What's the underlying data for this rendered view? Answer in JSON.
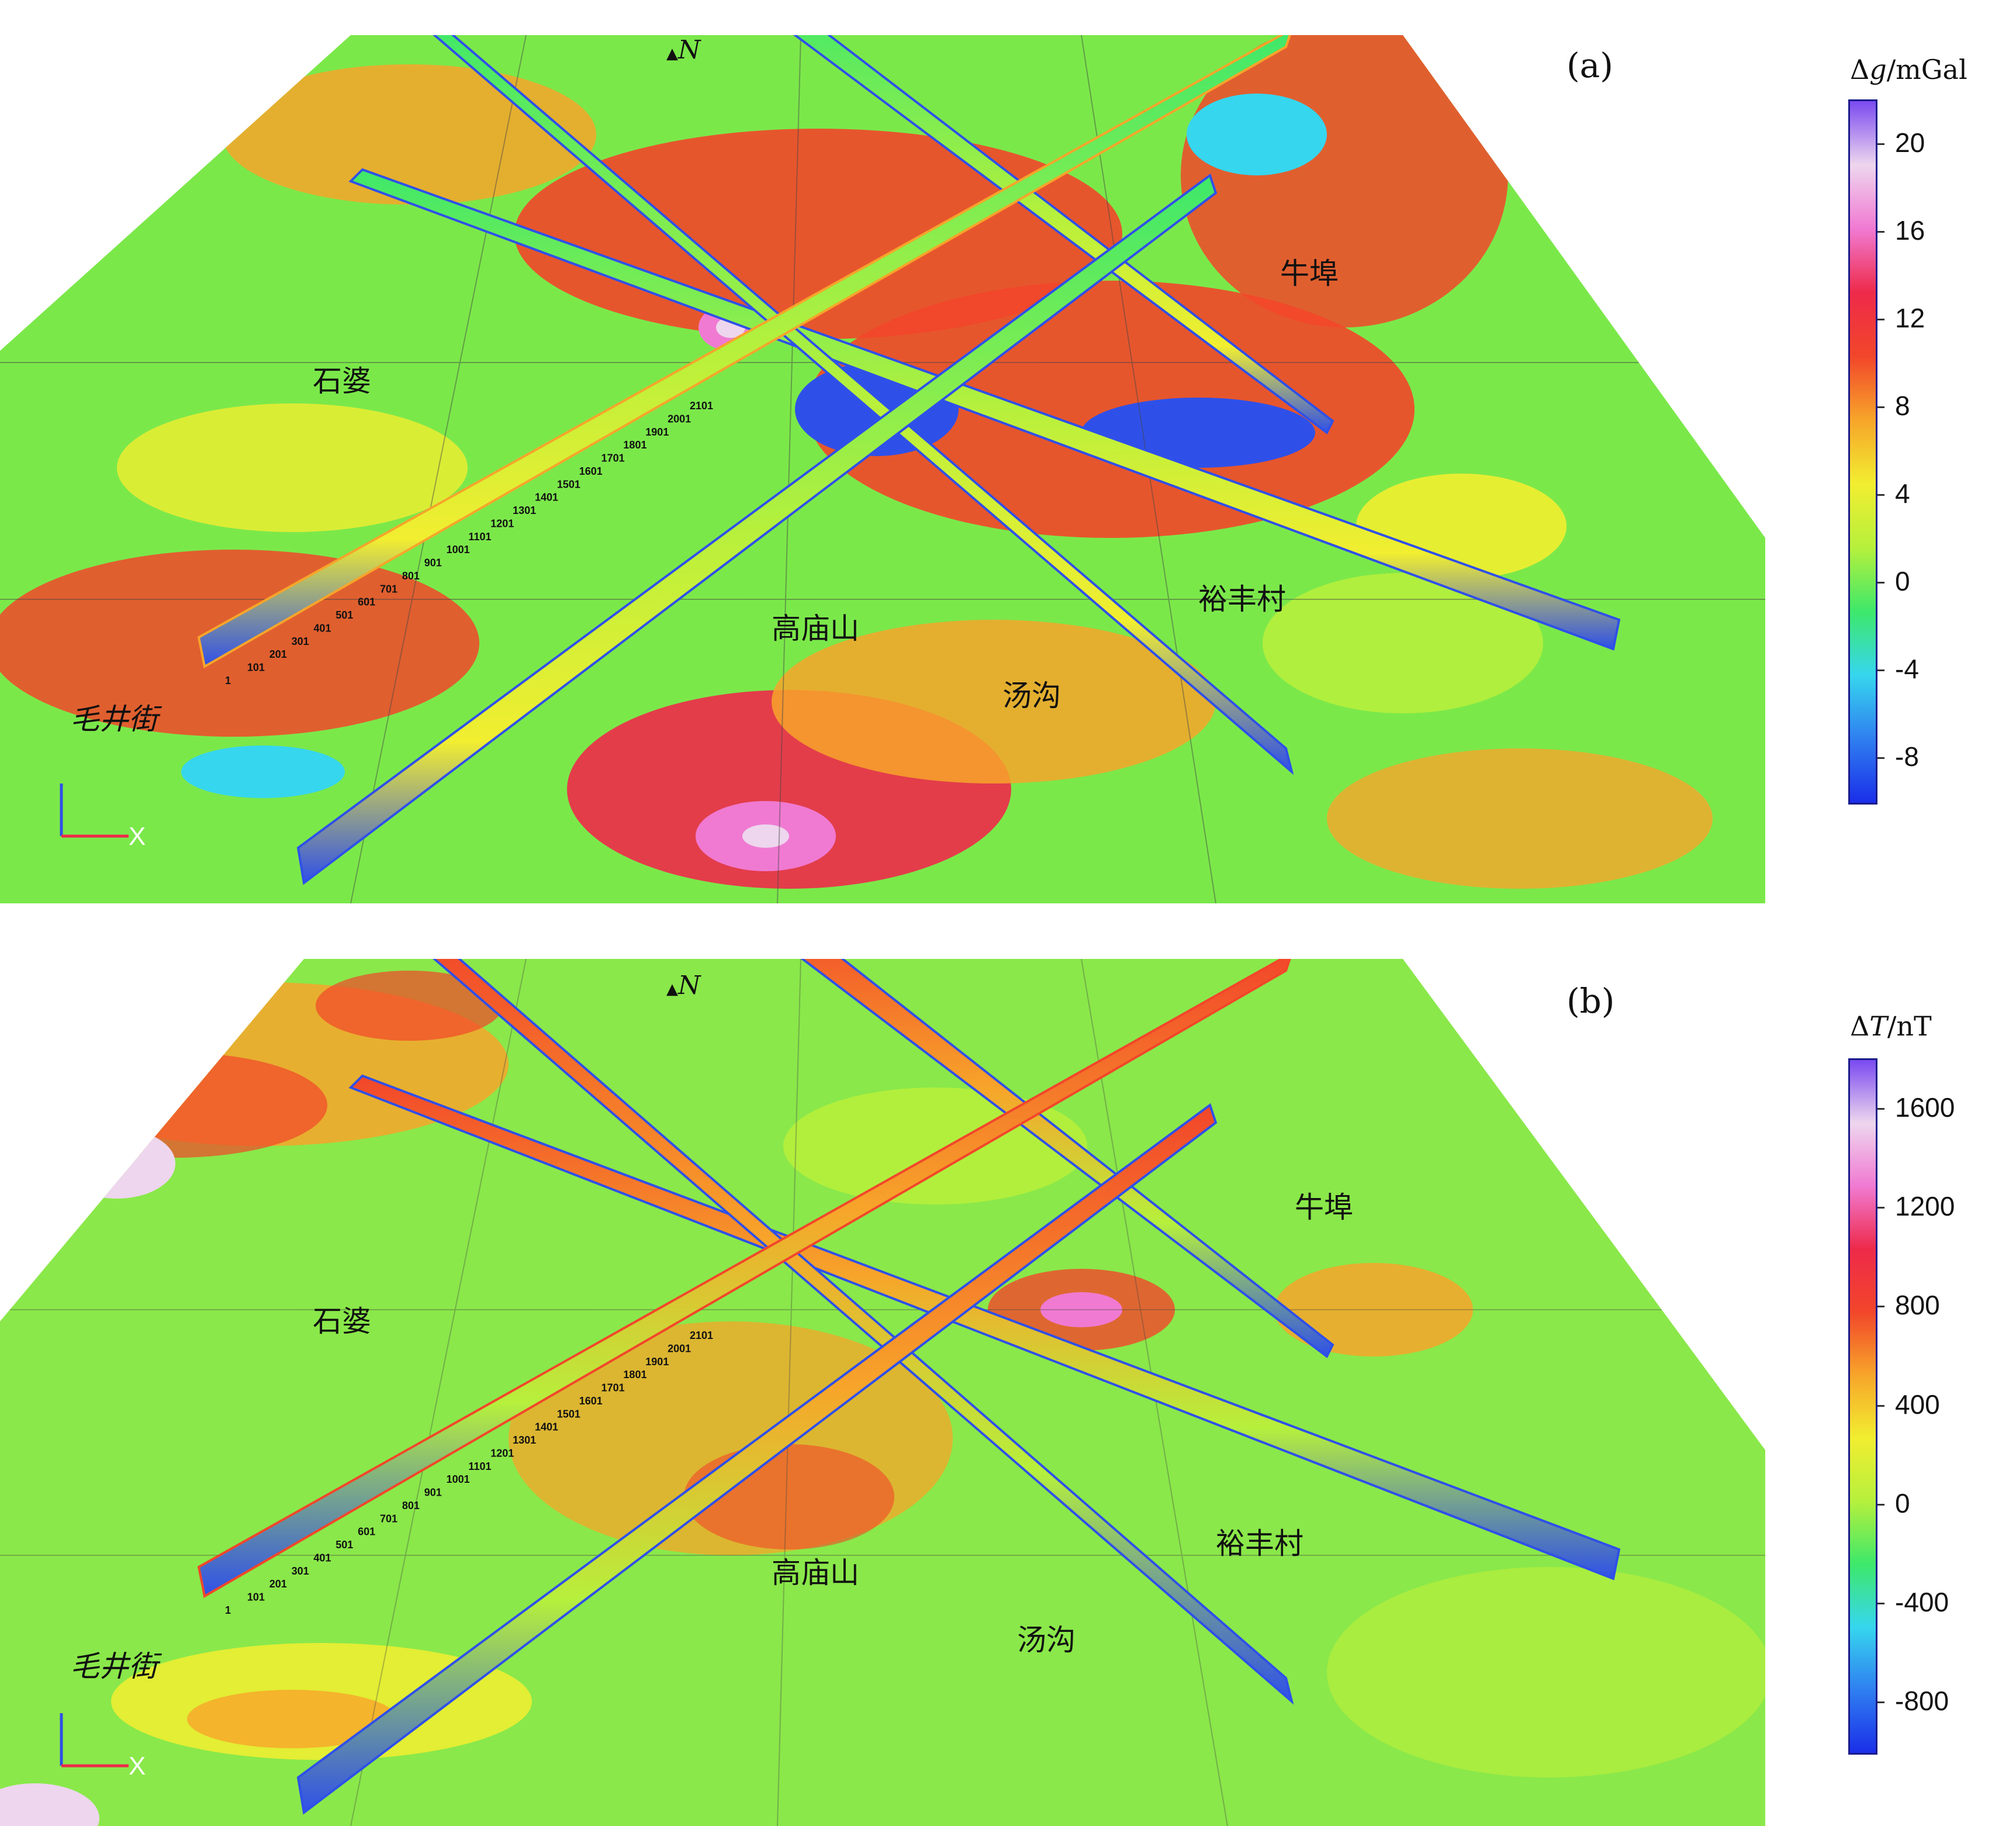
{
  "panels": [
    {
      "id": "a",
      "label": "(a)",
      "north": "N",
      "colorbar": {
        "symbol": "Δ",
        "variable": "g",
        "unit": "/mGal",
        "ticks": [
          "20",
          "16",
          "12",
          "8",
          "4",
          "0",
          "-4",
          "-8"
        ],
        "range": [
          -10,
          22
        ],
        "colors": [
          "#1a2ee8",
          "#2f7ff0",
          "#36d6ee",
          "#3ee86a",
          "#b6f03c",
          "#f2ee30",
          "#f7a52a",
          "#f2462a",
          "#ee2a4a",
          "#f07ad2",
          "#eed6ee",
          "#7a4af0"
        ]
      },
      "places": [
        "石婆",
        "毛井街",
        "高庙山",
        "汤沟",
        "裕丰村",
        "牛埠"
      ]
    },
    {
      "id": "b",
      "label": "(b)",
      "north": "N",
      "colorbar": {
        "symbol": "Δ",
        "variable": "T",
        "unit": "/nT",
        "ticks": [
          "1600",
          "1200",
          "800",
          "400",
          "0",
          "-400",
          "-800"
        ],
        "range": [
          -1000,
          1800
        ],
        "colors": [
          "#1a2ee8",
          "#2f7ff0",
          "#36d6ee",
          "#3ee86a",
          "#b6f03c",
          "#f2ee30",
          "#f7a52a",
          "#f2462a",
          "#ee2a4a",
          "#f07ad2",
          "#eed6ee",
          "#7a4af0"
        ]
      },
      "places": [
        "石婆",
        "毛井街",
        "高庙山",
        "汤沟",
        "裕丰村",
        "牛埠"
      ]
    }
  ],
  "profile_stations": [
    "1",
    "101",
    "201",
    "301",
    "401",
    "501",
    "601",
    "701",
    "801",
    "901",
    "1001",
    "1101",
    "1201",
    "1301",
    "1401",
    "1501",
    "1601",
    "1701",
    "1801",
    "1901",
    "2001",
    "2101"
  ]
}
